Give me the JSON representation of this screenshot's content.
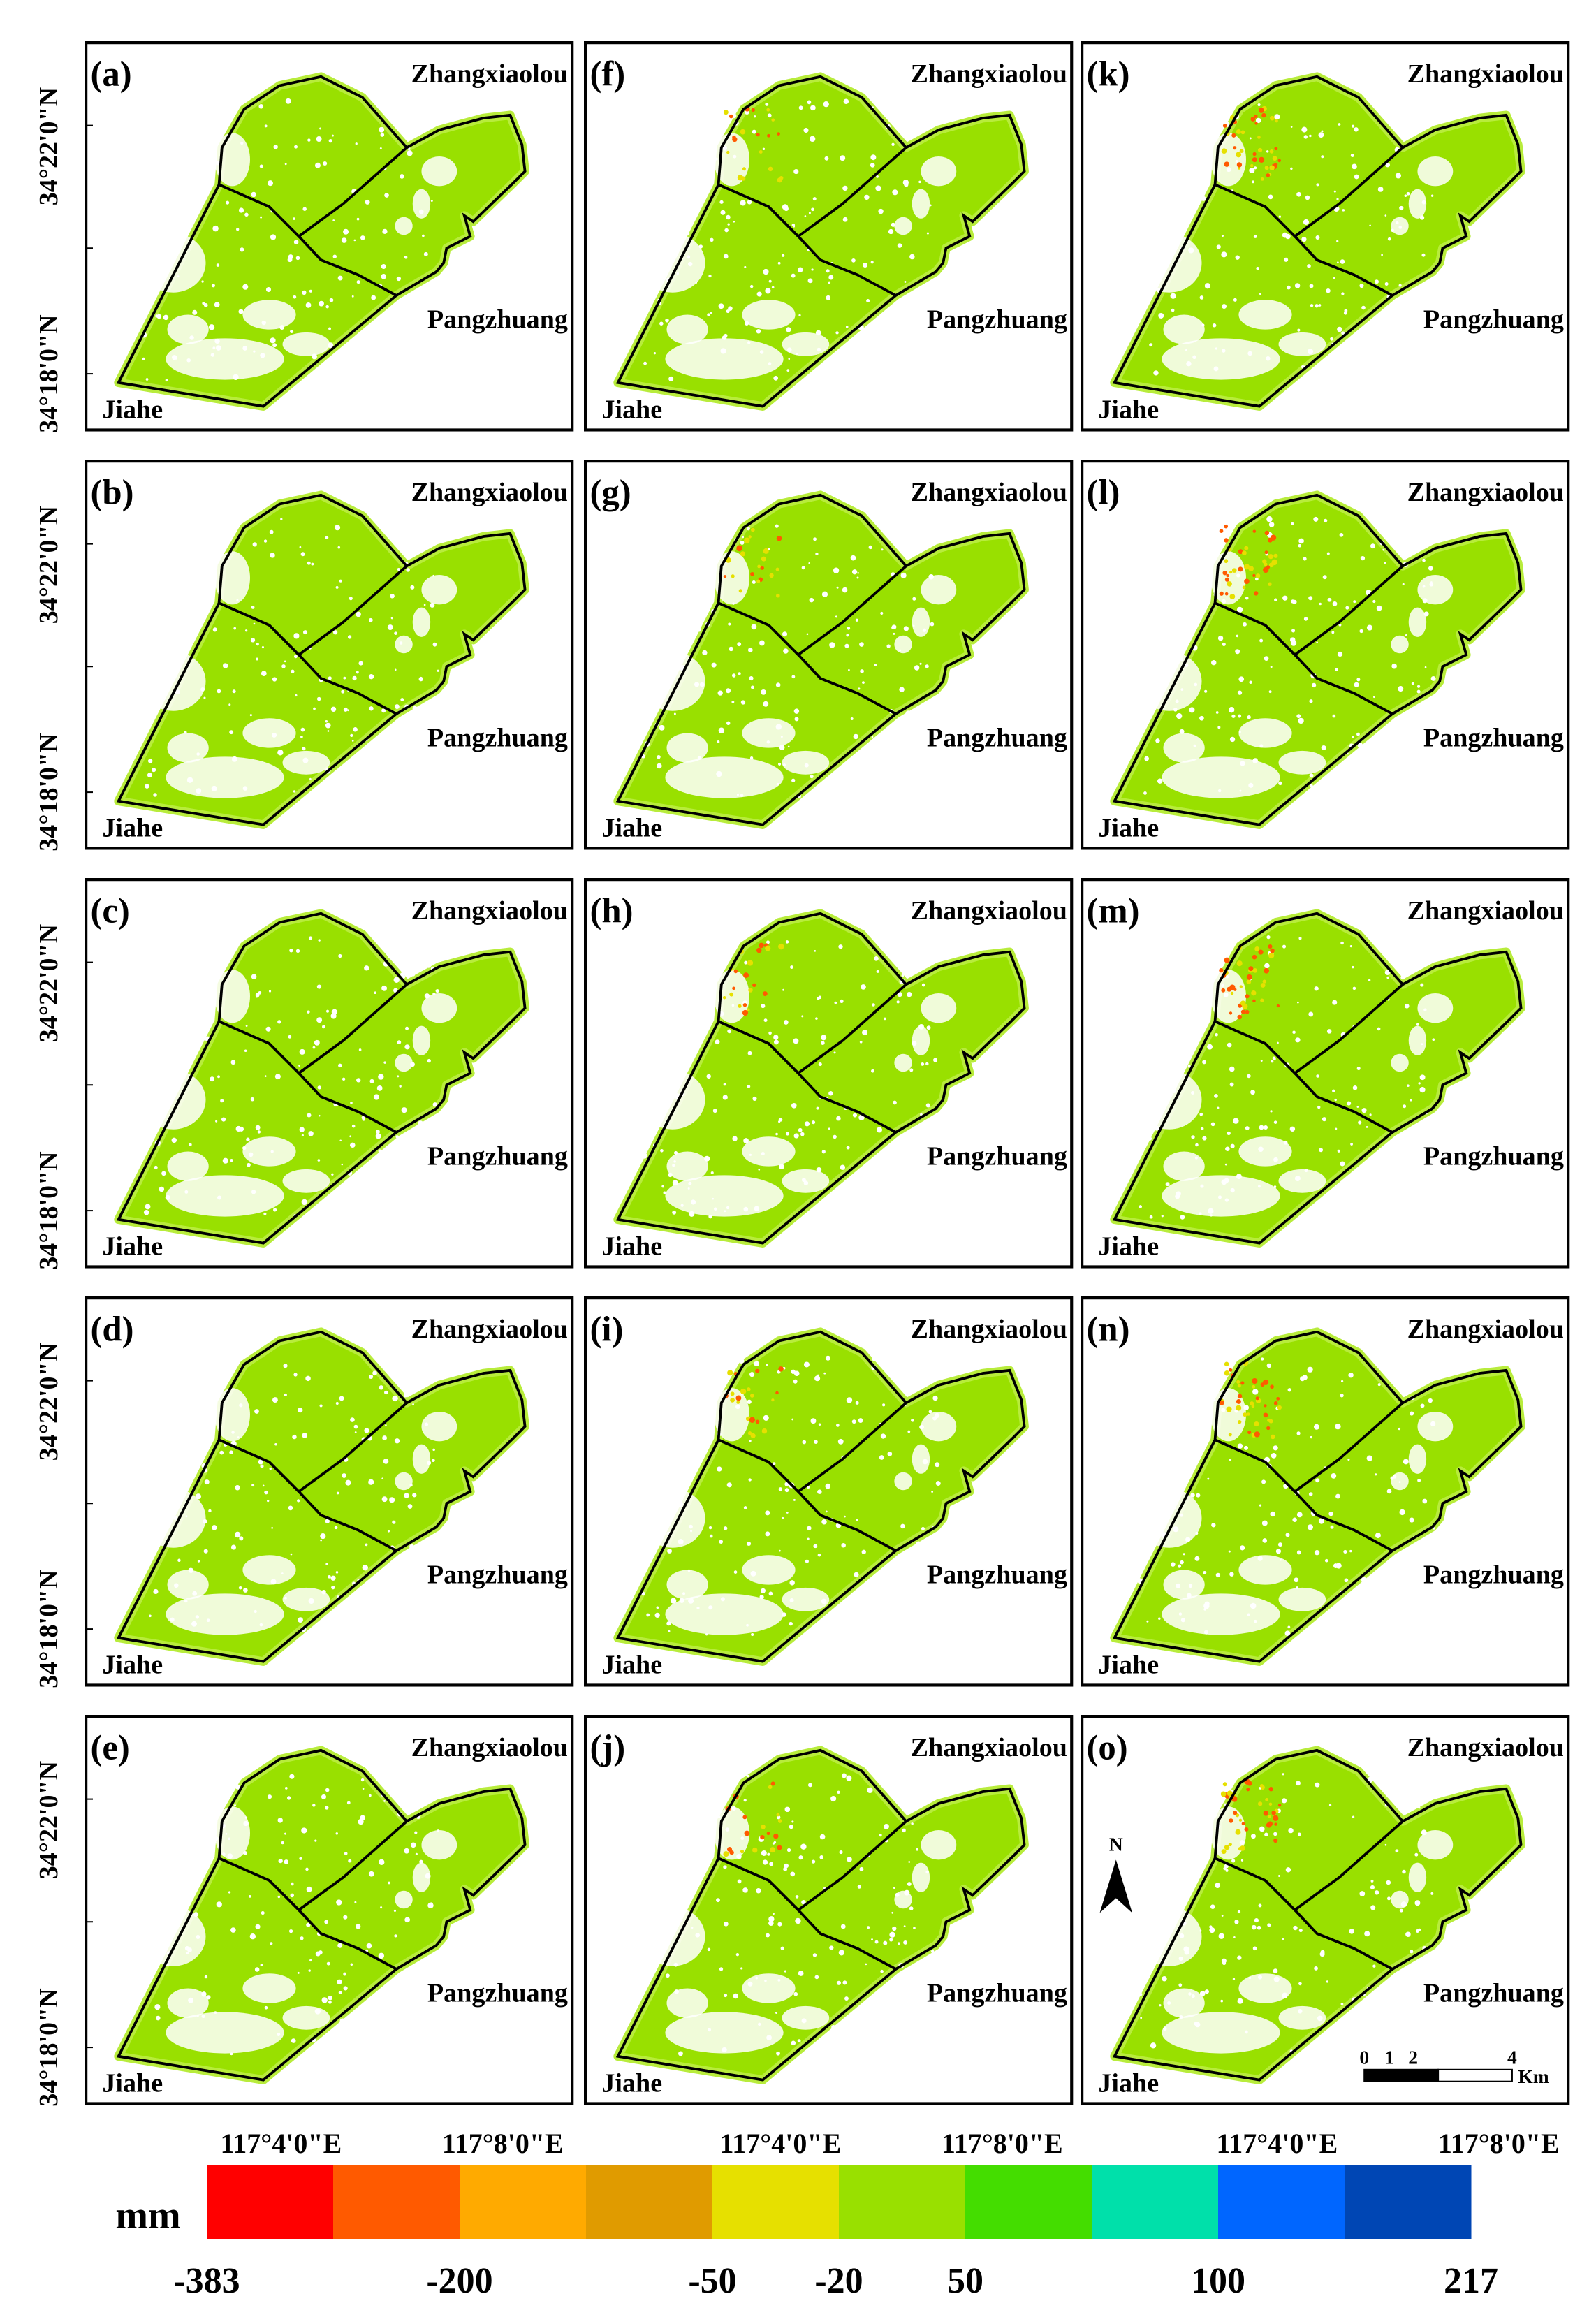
{
  "panels": [
    {
      "label": "(a)"
    },
    {
      "label": "(b)"
    },
    {
      "label": "(c)"
    },
    {
      "label": "(d)"
    },
    {
      "label": "(e)"
    },
    {
      "label": "(f)"
    },
    {
      "label": "(g)"
    },
    {
      "label": "(h)"
    },
    {
      "label": "(i)"
    },
    {
      "label": "(j)"
    },
    {
      "label": "(k)"
    },
    {
      "label": "(l)"
    },
    {
      "label": "(m)"
    },
    {
      "label": "(n)"
    },
    {
      "label": "(o)"
    }
  ],
  "towns": [
    "Zhangxiaolou",
    "Pangzhuang",
    "Jiahe"
  ],
  "lat_labels": [
    "34°22'0\"N",
    "34°18'0\"N"
  ],
  "lon_labels": [
    "117°4'0\"E",
    "117°8'0\"E"
  ],
  "north": "N",
  "scale_bar": {
    "ticks": [
      "0",
      "1",
      "2",
      "4"
    ],
    "unit": "Km"
  },
  "legend": {
    "unit": "mm",
    "colors": [
      "#ff0000",
      "#ff5a00",
      "#ffaa00",
      "#e09b00",
      "#e6e000",
      "#99e000",
      "#44dd00",
      "#00e0aa",
      "#0066ff",
      "#0046b4"
    ],
    "labels": [
      -383,
      -200,
      -50,
      -20,
      50,
      100,
      217
    ]
  }
}
